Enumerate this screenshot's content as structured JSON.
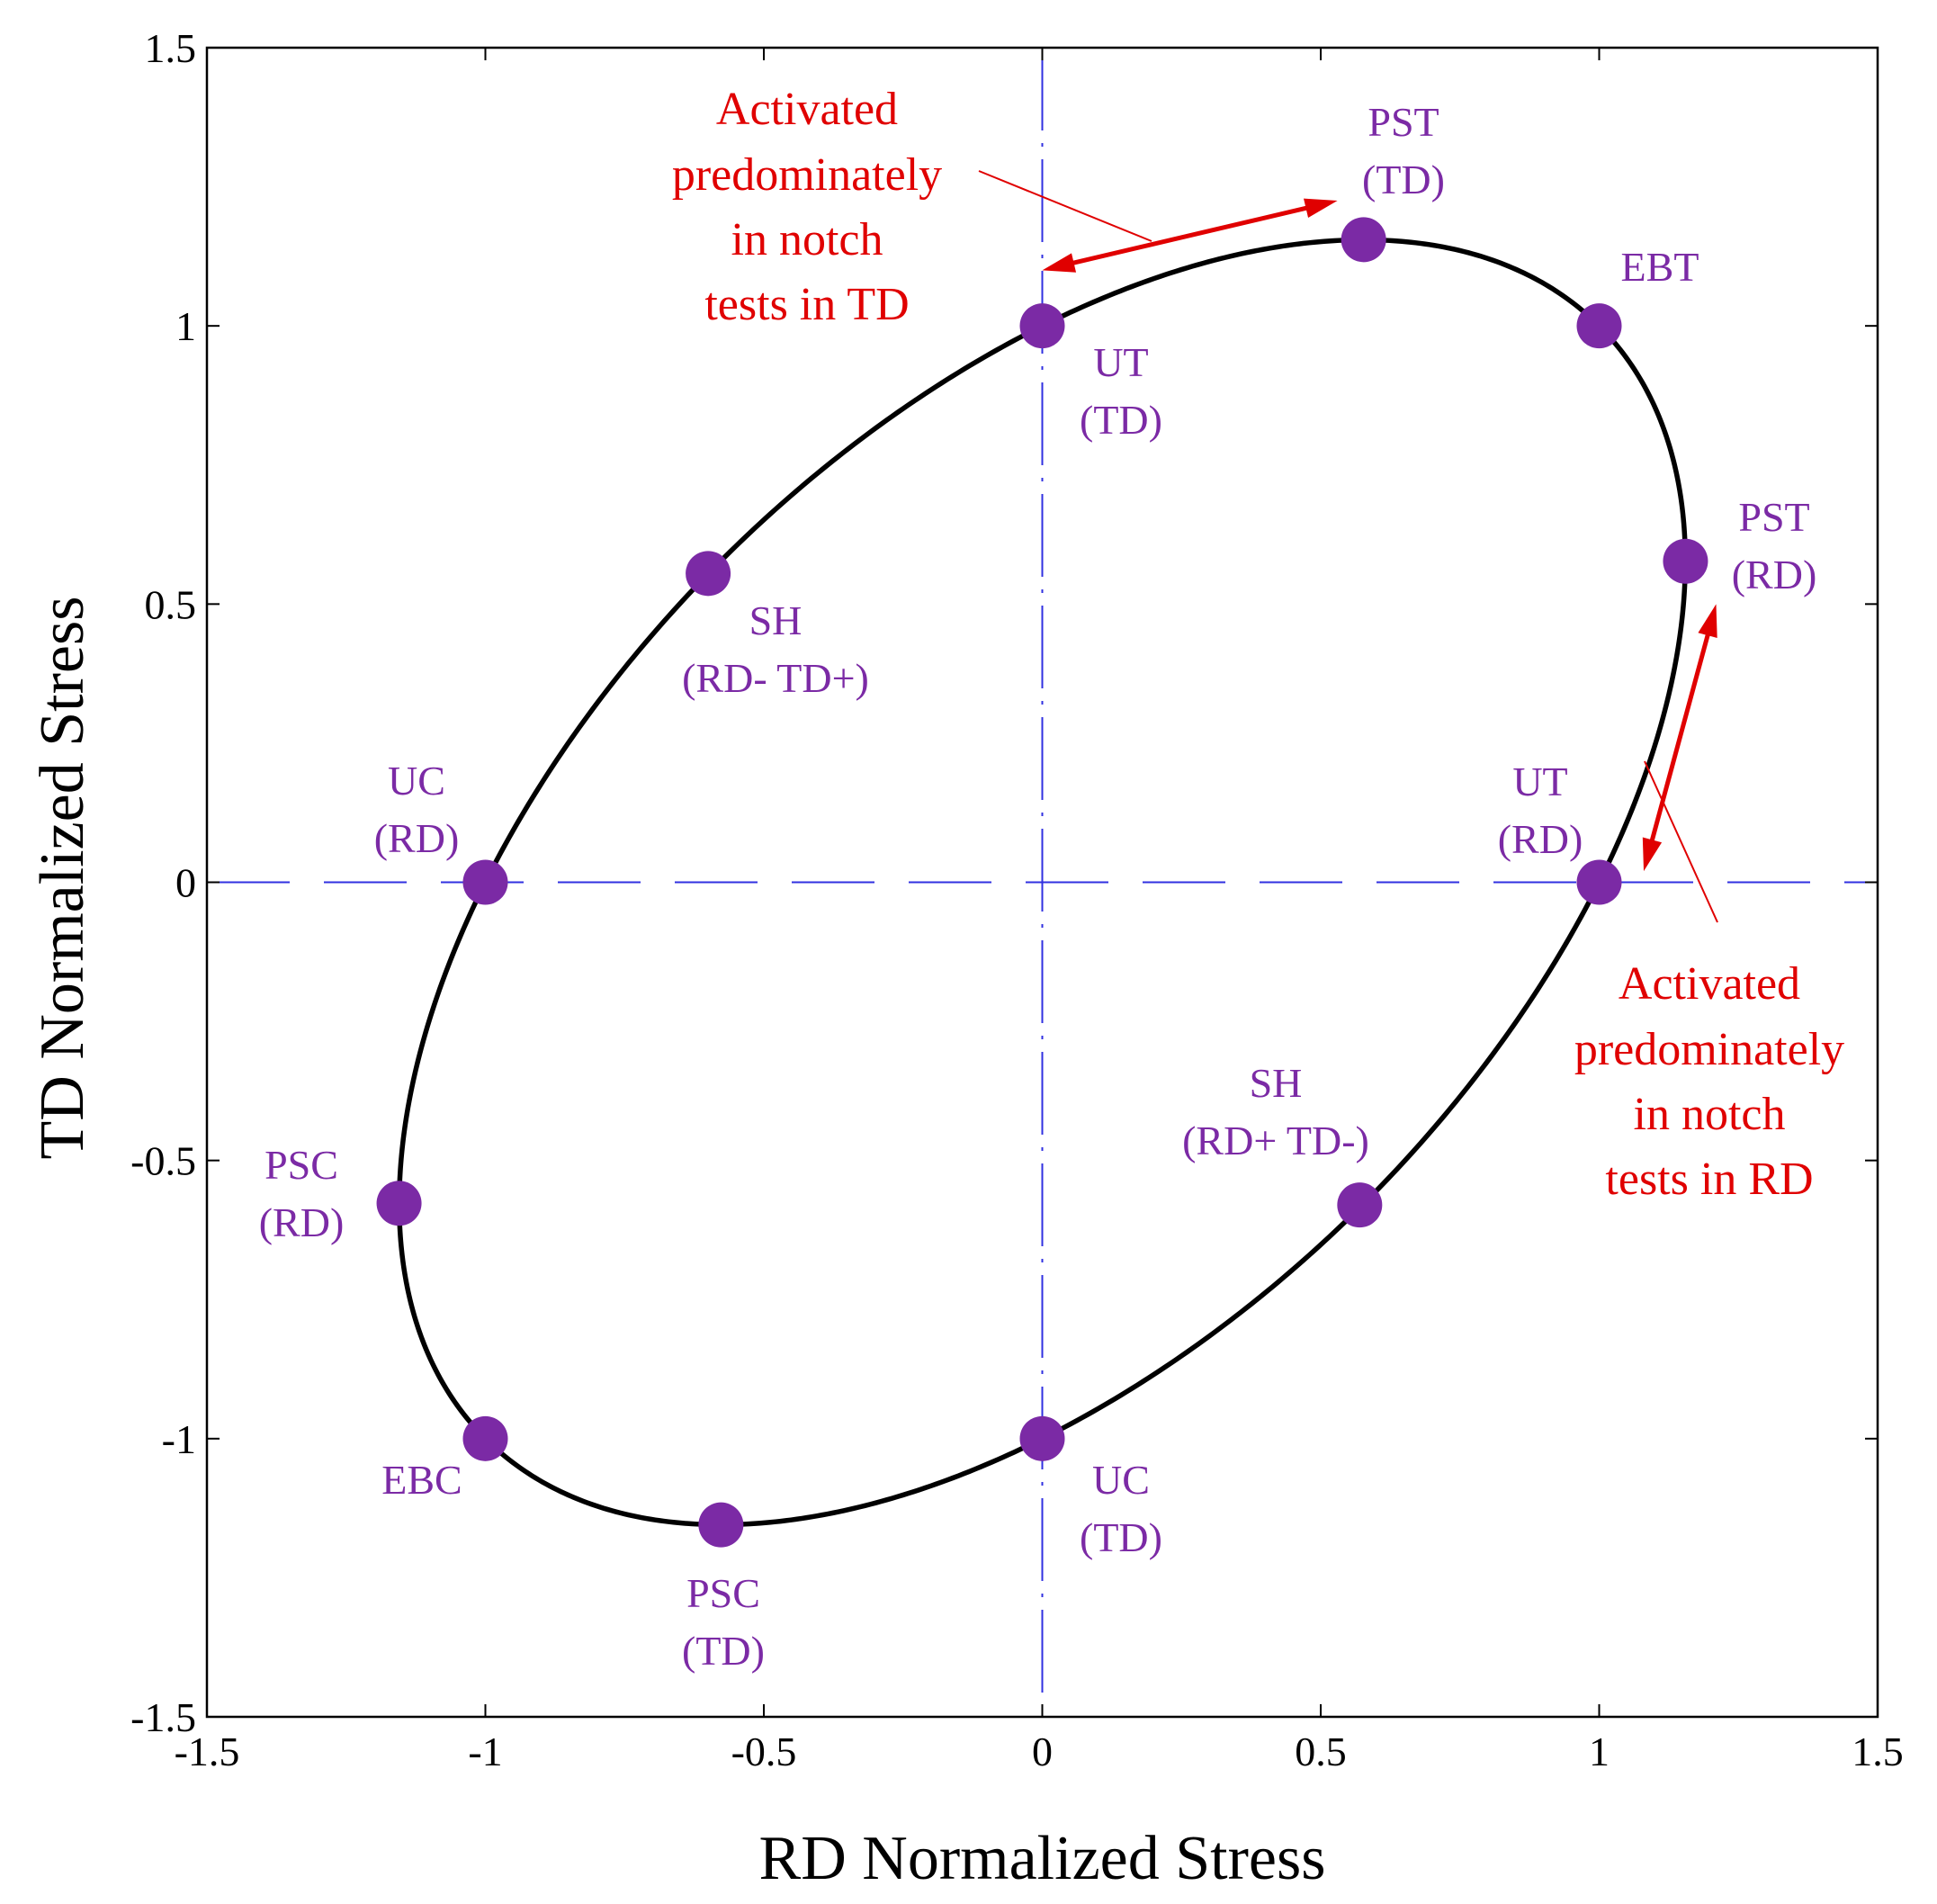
{
  "chart_data": {
    "type": "scatter",
    "title": "",
    "xlabel": "RD Normalized Stress",
    "ylabel": "TD Normalized Stress",
    "xlim": [
      -1.5,
      1.5
    ],
    "ylim": [
      -1.5,
      1.5
    ],
    "xticks": [
      -1.5,
      -1,
      -0.5,
      0,
      0.5,
      1,
      1.5
    ],
    "yticks": [
      -1.5,
      -1,
      -0.5,
      0,
      0.5,
      1,
      1.5
    ],
    "xtick_labels": [
      "-1.5",
      "-1",
      "-0.5",
      "0",
      "0.5",
      "1",
      "1.5"
    ],
    "ytick_labels": [
      "-1.5",
      "-1",
      "-0.5",
      "0",
      "0.5",
      "1",
      "1.5"
    ],
    "grid": false,
    "reference_lines": [
      {
        "orientation": "vertical",
        "at": 0,
        "style": "dashdot"
      },
      {
        "orientation": "horizontal",
        "at": 0,
        "style": "dashed"
      }
    ],
    "yield_surface": {
      "shape": "ellipse",
      "equation": "x^2 - x*y + y^2 = 1",
      "color": "#000000"
    },
    "point_color": "#7b2aa5",
    "annotation_color": "#e00000",
    "points": [
      {
        "id": "pst-td",
        "x": 0.577,
        "y": 1.155,
        "label": [
          "PST",
          "(TD)"
        ]
      },
      {
        "id": "ebt",
        "x": 1.0,
        "y": 1.0,
        "label": [
          "EBT"
        ]
      },
      {
        "id": "ut-td",
        "x": 0.0,
        "y": 1.0,
        "label": [
          "UT",
          "(TD)"
        ]
      },
      {
        "id": "pst-rd",
        "x": 1.155,
        "y": 0.577,
        "label": [
          "PST",
          "(RD)"
        ]
      },
      {
        "id": "sh-rdm-tdp",
        "x": -0.6,
        "y": 0.555,
        "label": [
          "SH",
          "(RD- TD+)"
        ]
      },
      {
        "id": "uc-rd",
        "x": -1.0,
        "y": 0.0,
        "label": [
          "UC",
          "(RD)"
        ]
      },
      {
        "id": "ut-rd",
        "x": 1.0,
        "y": 0.0,
        "label": [
          "UT",
          "(RD)"
        ]
      },
      {
        "id": "sh-rdp-tdm",
        "x": 0.57,
        "y": -0.58,
        "label": [
          "SH",
          "(RD+ TD-)"
        ]
      },
      {
        "id": "psc-rd",
        "x": -1.155,
        "y": -0.577,
        "label": [
          "PSC",
          "(RD)"
        ]
      },
      {
        "id": "ebc",
        "x": -1.0,
        "y": -1.0,
        "label": [
          "EBC"
        ]
      },
      {
        "id": "uc-td",
        "x": 0.0,
        "y": -1.0,
        "label": [
          "UC",
          "(TD)"
        ]
      },
      {
        "id": "psc-td",
        "x": -0.577,
        "y": -1.155,
        "label": [
          "PSC",
          "(TD)"
        ]
      }
    ],
    "annotations": [
      {
        "id": "td",
        "lines": [
          "Activated",
          "predominately",
          "in notch",
          "tests in TD"
        ],
        "arrow_from": [
          0.0,
          1.1
        ],
        "arrow_to": [
          0.53,
          1.225
        ]
      },
      {
        "id": "rd",
        "lines": [
          "Activated",
          "predominately",
          "in notch",
          "tests in RD"
        ],
        "arrow_from": [
          1.08,
          0.02
        ],
        "arrow_to": [
          1.21,
          0.5
        ]
      }
    ]
  }
}
